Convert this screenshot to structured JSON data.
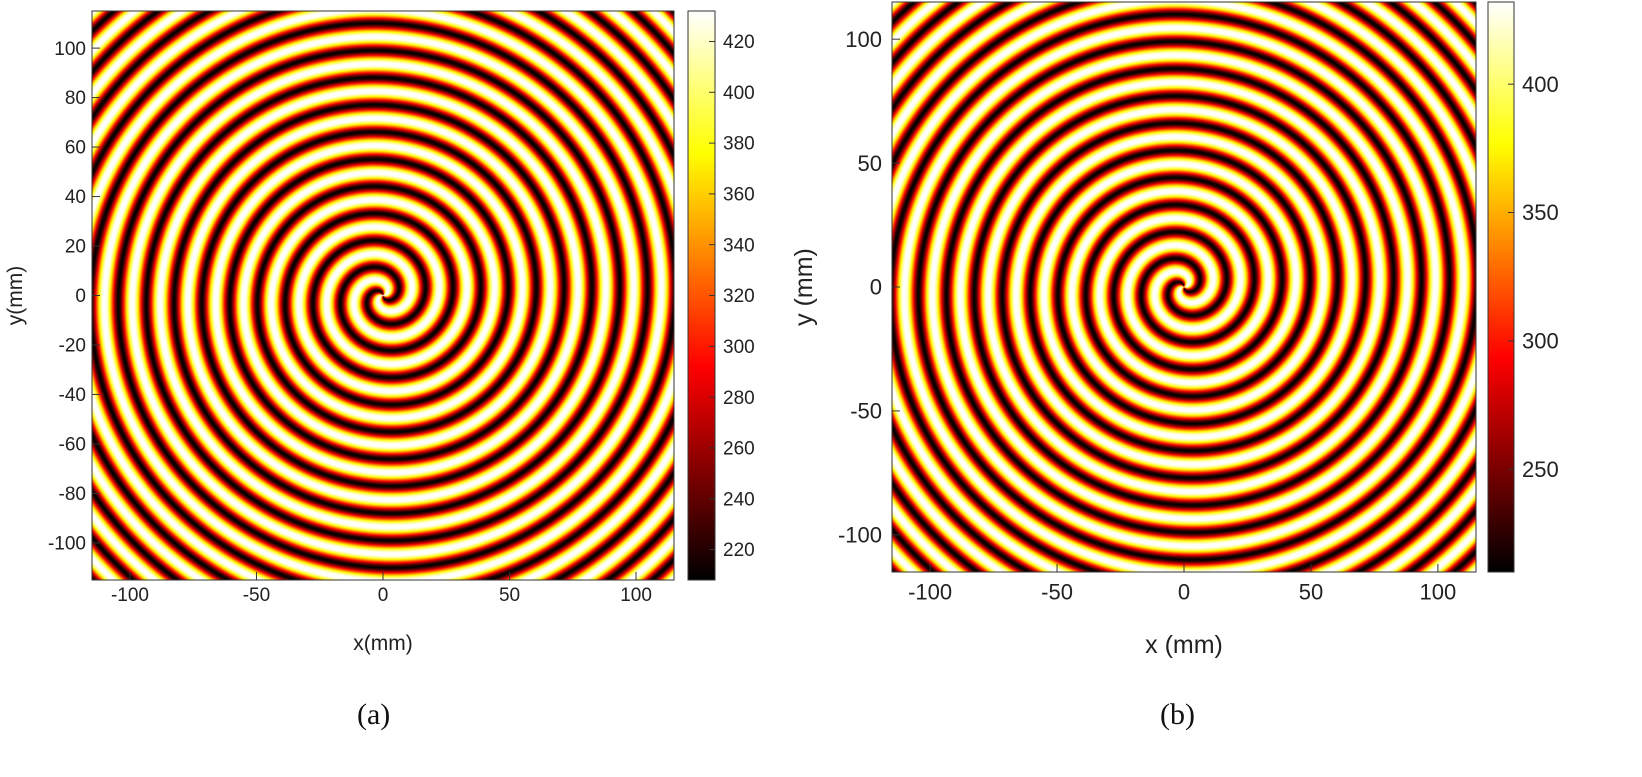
{
  "chart_data": [
    {
      "type": "heatmap",
      "panel_label": "(a)",
      "xlabel": "x(mm)",
      "ylabel": "y(mm)",
      "xlim": [
        -115,
        115
      ],
      "ylim": [
        -115,
        115
      ],
      "xticks": [
        -100,
        -50,
        0,
        50,
        100
      ],
      "yticks": [
        -100,
        -80,
        -60,
        -40,
        -20,
        0,
        20,
        40,
        60,
        80,
        100
      ],
      "colorbar": {
        "colormap": "hot",
        "range": [
          208,
          432
        ],
        "ticks": [
          220,
          240,
          260,
          280,
          300,
          320,
          340,
          360,
          380,
          400,
          420
        ]
      },
      "pattern": "two-armed spiral wave, arm spacing about 11 mm, centered at (0, 0)"
    },
    {
      "type": "heatmap",
      "panel_label": "(b)",
      "xlabel": "x (mm)",
      "ylabel": "y (mm)",
      "xlim": [
        -115,
        115
      ],
      "ylim": [
        -115,
        115
      ],
      "xticks": [
        -100,
        -50,
        0,
        50,
        100
      ],
      "yticks": [
        -100,
        -50,
        0,
        50,
        100
      ],
      "colorbar": {
        "colormap": "hot",
        "range": [
          210,
          432
        ],
        "ticks": [
          250,
          300,
          350,
          400
        ]
      },
      "pattern": "two-armed spiral wave, arm spacing about 11 mm, centered at (0, 0)"
    }
  ]
}
